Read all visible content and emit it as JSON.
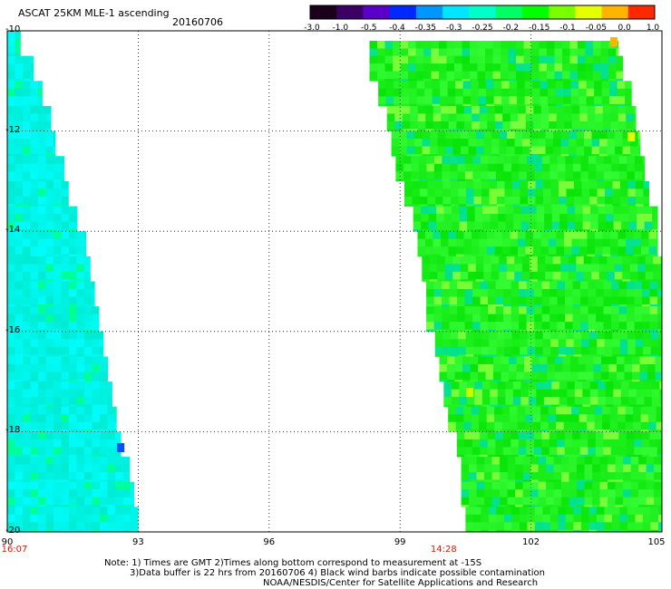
{
  "title": "ASCAT 25KM MLE-1 ascending",
  "date": "20160706",
  "colorbar": {
    "labels": [
      "-3.0",
      "-1.0",
      "-0.5",
      "-0.4",
      "-0.35",
      "-0.3",
      "-0.25",
      "-0.2",
      "-0.15",
      "-0.1",
      "-0.05",
      "0.0",
      "1.0"
    ],
    "colors": [
      "#1a001a",
      "#3c0064",
      "#5a00c8",
      "#0028ff",
      "#0096ff",
      "#00e6ff",
      "#00ffc8",
      "#00ff64",
      "#00ff00",
      "#78ff00",
      "#e6ff00",
      "#ffb400",
      "#ff2800"
    ]
  },
  "map": {
    "lon_range": [
      90,
      105
    ],
    "lat_range": [
      -20,
      -10
    ],
    "lon_ticks": [
      "90",
      "93",
      "96",
      "99",
      "102",
      "105"
    ],
    "lat_ticks": [
      "-10",
      "-12",
      "-14",
      "-16",
      "-18",
      "-20"
    ],
    "grid": true,
    "times": [
      {
        "lon": 90,
        "label": "16:07"
      },
      {
        "lon": 100,
        "label": "14:28"
      }
    ],
    "swaths": [
      {
        "name": "left-swath",
        "field": "cyan",
        "edges": [
          [
            -10,
            90.0,
            90.3
          ],
          [
            -10.5,
            90.0,
            90.6
          ],
          [
            -11.0,
            90.0,
            90.8
          ],
          [
            -11.5,
            90.0,
            91.0
          ],
          [
            -12.0,
            90.0,
            91.1
          ],
          [
            -12.5,
            90.0,
            91.3
          ],
          [
            -13.0,
            90.0,
            91.4
          ],
          [
            -13.5,
            90.0,
            91.6
          ],
          [
            -14.0,
            90.0,
            91.8
          ],
          [
            -14.5,
            90.0,
            91.9
          ],
          [
            -15.0,
            90.0,
            92.0
          ],
          [
            -15.5,
            90.0,
            92.1
          ],
          [
            -16.0,
            90.0,
            92.2
          ],
          [
            -16.5,
            90.0,
            92.3
          ],
          [
            -17.0,
            90.0,
            92.4
          ],
          [
            -17.5,
            90.0,
            92.5
          ],
          [
            -18.0,
            90.0,
            92.6
          ],
          [
            -18.5,
            90.0,
            92.8
          ],
          [
            -19.0,
            90.0,
            92.9
          ],
          [
            -19.5,
            90.0,
            93.0
          ],
          [
            -20.0,
            90.0,
            93.2
          ]
        ]
      },
      {
        "name": "right-swath",
        "field": "green",
        "edges": [
          [
            -10.2,
            98.3,
            104.0
          ],
          [
            -10.5,
            98.3,
            104.1
          ],
          [
            -11.0,
            98.5,
            104.3
          ],
          [
            -11.5,
            98.7,
            104.4
          ],
          [
            -12.0,
            98.8,
            104.5
          ],
          [
            -12.5,
            98.9,
            104.6
          ],
          [
            -13.0,
            99.1,
            104.7
          ],
          [
            -13.5,
            99.3,
            104.9
          ],
          [
            -14.0,
            99.4,
            104.9
          ],
          [
            -14.5,
            99.5,
            105.0
          ],
          [
            -15.0,
            99.6,
            105.0
          ],
          [
            -15.5,
            99.6,
            105.0
          ],
          [
            -16.0,
            99.8,
            105.0
          ],
          [
            -16.5,
            99.9,
            105.0
          ],
          [
            -17.0,
            100.0,
            105.0
          ],
          [
            -17.5,
            100.1,
            105.0
          ],
          [
            -18.0,
            100.3,
            105.0
          ],
          [
            -18.5,
            100.4,
            105.0
          ],
          [
            -19.0,
            100.4,
            105.0
          ],
          [
            -19.5,
            100.5,
            105.0
          ],
          [
            -20.0,
            100.6,
            105.0
          ]
        ]
      }
    ],
    "hotspots": [
      {
        "lon": 103.9,
        "lat": -10.2,
        "value": 0.05
      },
      {
        "lon": 104.3,
        "lat": -12.1,
        "value": -0.05
      },
      {
        "lon": 100.6,
        "lat": -17.2,
        "value": -0.1
      },
      {
        "lon": 92.6,
        "lat": -18.3,
        "value": -0.4
      }
    ]
  },
  "notes": {
    "line1": "Note: 1) Times are GMT 2)Times along bottom correspond to measurement at -15S",
    "line2": "3)Data buffer is 22 hrs from 20160706 4) Black wind barbs indicate possible contamination",
    "line3": "NOAA/NESDIS/Center for Satellite Applications and Research"
  }
}
